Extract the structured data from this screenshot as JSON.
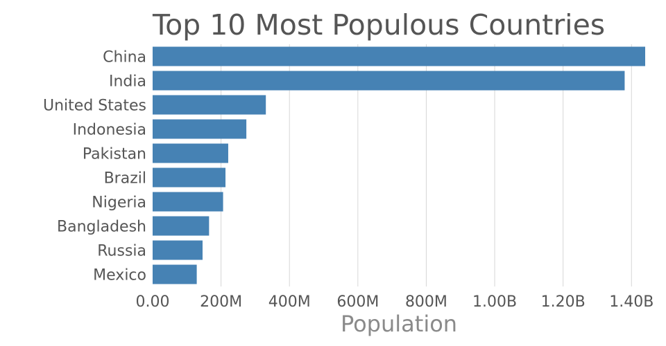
{
  "chart_data": {
    "type": "bar",
    "orientation": "horizontal",
    "title": "Top 10 Most Populous Countries",
    "xlabel": "Population",
    "ylabel": "",
    "categories": [
      "China",
      "India",
      "United States",
      "Indonesia",
      "Pakistan",
      "Brazil",
      "Nigeria",
      "Bangladesh",
      "Russia",
      "Mexico"
    ],
    "values": [
      1440000000,
      1380000000,
      331000000,
      274000000,
      221000000,
      213000000,
      206000000,
      165000000,
      146000000,
      129000000
    ],
    "xlim": [
      0,
      1440000000
    ],
    "x_ticks": [
      0,
      200000000,
      400000000,
      600000000,
      800000000,
      1000000000,
      1200000000,
      1400000000
    ],
    "x_tick_labels": [
      "0.00",
      "200M",
      "400M",
      "600M",
      "800M",
      "1.00B",
      "1.20B",
      "1.40B"
    ],
    "grid": "vertical",
    "legend": "none",
    "bar_color": "#4682b4"
  }
}
